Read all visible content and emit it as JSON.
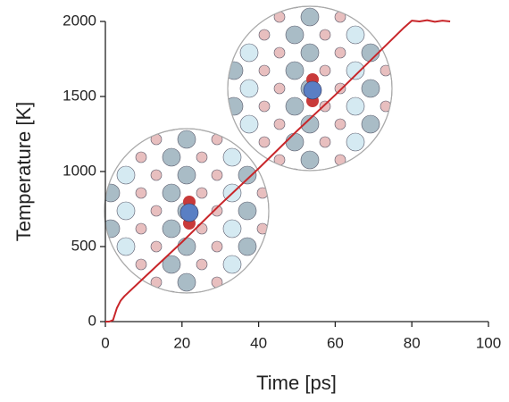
{
  "chart_data": {
    "type": "line",
    "x_label": "Time [ps]",
    "y_label": "Temperature [K]",
    "xlim": [
      0,
      100
    ],
    "xticks": [
      0,
      20,
      40,
      60,
      80,
      100
    ],
    "ylim": [
      0,
      2000
    ],
    "yticks": [
      0,
      500,
      1000,
      1500,
      2000
    ],
    "series": [
      {
        "color": "#c8262a",
        "x": [
          0,
          1,
          2,
          3,
          4,
          5,
          10,
          20,
          30,
          40,
          50,
          60,
          70,
          78,
          80,
          82,
          84,
          86,
          88,
          90
        ],
        "values": [
          0,
          0,
          10,
          90,
          140,
          170,
          290,
          530,
          780,
          1020,
          1270,
          1510,
          1760,
          1960,
          2005,
          2000,
          2008,
          1998,
          2005,
          2000
        ]
      }
    ]
  }
}
